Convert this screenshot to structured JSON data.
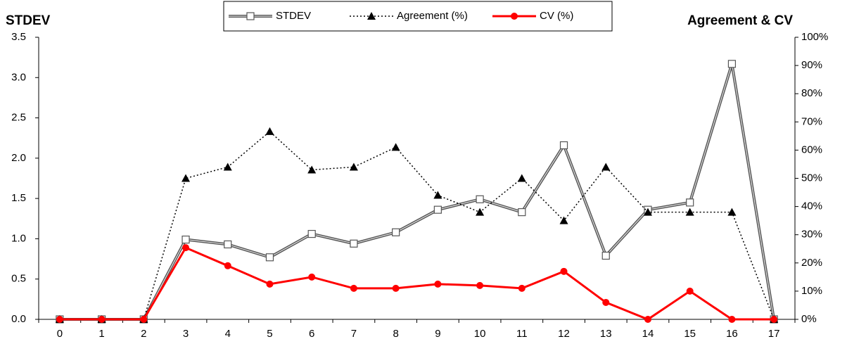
{
  "chart_data": {
    "type": "line",
    "y_title": "STDEV",
    "y2_title": "Agreement & CV",
    "categories": [
      "0",
      "1",
      "2",
      "3",
      "4",
      "5",
      "6",
      "7",
      "8",
      "9",
      "10",
      "11",
      "12",
      "13",
      "14",
      "15",
      "16",
      "17"
    ],
    "ylim": [
      0,
      3.5
    ],
    "yticks": [
      {
        "value": 0,
        "label": "0.0"
      },
      0.5,
      {
        "value": 1,
        "label": "1.0"
      },
      1.5,
      {
        "value": 2,
        "label": "2.0"
      },
      2.5,
      {
        "value": 3,
        "label": "3.0"
      },
      3.5
    ],
    "y2lim": [
      0,
      100
    ],
    "y2ticks": [
      {
        "value": 0,
        "label": "0%"
      },
      {
        "value": 10,
        "label": "10%"
      },
      {
        "value": 20,
        "label": "20%"
      },
      {
        "value": 30,
        "label": "30%"
      },
      {
        "value": 40,
        "label": "40%"
      },
      {
        "value": 50,
        "label": "50%"
      },
      {
        "value": 60,
        "label": "60%"
      },
      {
        "value": 70,
        "label": "70%"
      },
      {
        "value": 80,
        "label": "80%"
      },
      {
        "value": 90,
        "label": "90%"
      },
      {
        "value": 100,
        "label": "100%"
      }
    ],
    "legend": "top",
    "series": [
      {
        "name": "STDEV",
        "color": "#555555",
        "marker": "square",
        "dash": "double",
        "values": [
          0,
          0,
          0,
          0.99,
          0.93,
          0.77,
          1.06,
          0.94,
          1.08,
          1.36,
          1.49,
          1.33,
          2.16,
          0.79,
          1.36,
          1.45,
          3.17,
          0
        ]
      },
      {
        "name": "Agreement (%)",
        "color": "#000000",
        "marker": "triangle",
        "dash": "dotted",
        "axis": "y2",
        "values": [
          0,
          0,
          0,
          50,
          54,
          66.6,
          53,
          54,
          61,
          44,
          38,
          50,
          35,
          54,
          38,
          38,
          38,
          0
        ]
      },
      {
        "name": "CV (%)",
        "color": "#ff0000",
        "marker": "circle",
        "dash": "solid",
        "axis": "y2",
        "values": [
          0,
          0,
          0,
          25.4,
          19,
          12.5,
          15,
          11,
          11,
          12.5,
          12,
          11,
          17,
          6,
          0,
          10,
          0,
          0
        ]
      }
    ]
  }
}
